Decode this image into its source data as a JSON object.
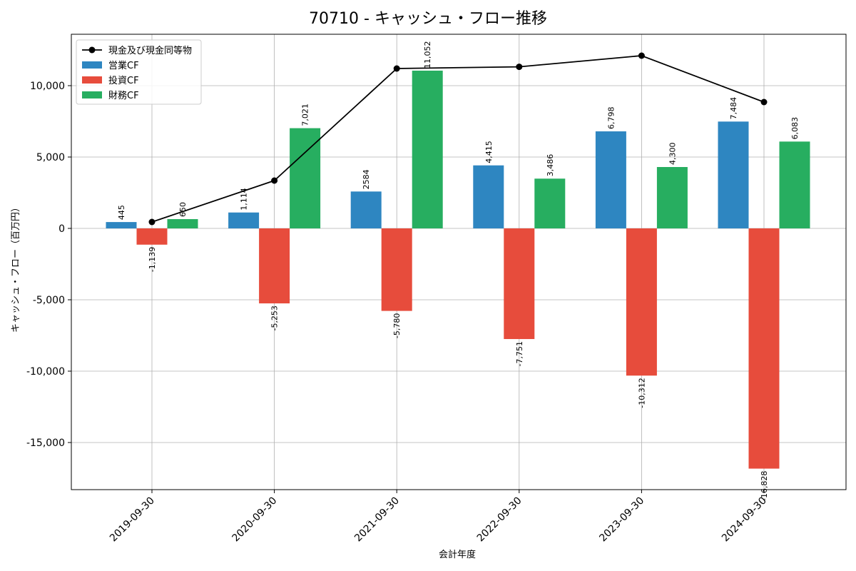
{
  "chart_data": {
    "type": "bar",
    "title": "70710 - キャッシュ・フロー推移",
    "xlabel": "会計年度",
    "ylabel": "キャッシュ・フロー（百万円）",
    "categories": [
      "2019-09-30",
      "2020-09-30",
      "2021-09-30",
      "2022-09-30",
      "2023-09-30",
      "2024-09-30"
    ],
    "series": [
      {
        "name": "営業CF",
        "kind": "bar",
        "color": "#2e86c1",
        "values": [
          445,
          1114,
          2584,
          4415,
          6798,
          7484
        ],
        "labels": [
          "445",
          "1,114",
          "2584",
          "4,415",
          "6,798",
          "7,484"
        ]
      },
      {
        "name": "投資CF",
        "kind": "bar",
        "color": "#e74c3c",
        "values": [
          -1139,
          -5253,
          -5780,
          -7751,
          -10312,
          -16828
        ],
        "labels": [
          "-1,139",
          "-5,253",
          "-5,780",
          "-7,751",
          "-10,312",
          "-16,828"
        ]
      },
      {
        "name": "財務CF",
        "kind": "bar",
        "color": "#27ae60",
        "values": [
          650,
          7021,
          11052,
          3486,
          4300,
          6083
        ],
        "labels": [
          "650",
          "7,021",
          "11,052",
          "3,486",
          "4,300",
          "6,083"
        ]
      },
      {
        "name": "現金及び現金同等物",
        "kind": "line",
        "color": "#000000",
        "values": [
          450,
          3350,
          11200,
          11320,
          12100,
          8850
        ]
      }
    ],
    "ylim": [
      -18300,
      13600
    ],
    "yticks": [
      -15000,
      -10000,
      -5000,
      0,
      5000,
      10000
    ],
    "ytick_labels": [
      "-15,000",
      "-10,000",
      "-5,000",
      "0",
      "5,000",
      "10,000"
    ],
    "grid": true,
    "legend_position": "top-left",
    "legend_order": [
      "現金及び現金同等物",
      "営業CF",
      "投資CF",
      "財務CF"
    ]
  }
}
